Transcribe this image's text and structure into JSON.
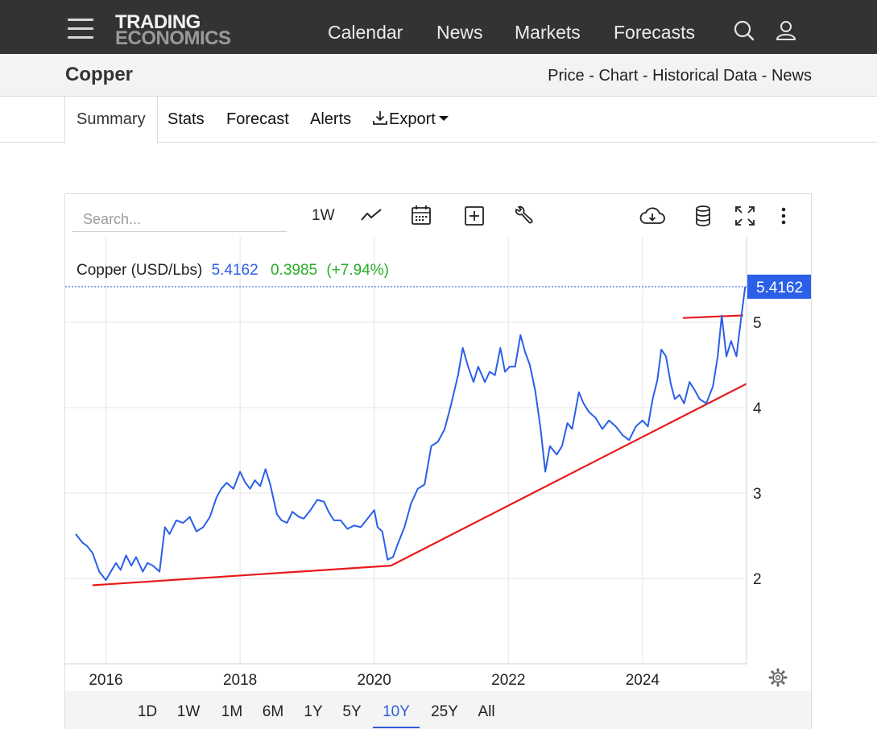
{
  "header": {
    "logo_line1": "TRADING",
    "logo_line2": "ECONOMICS",
    "nav": [
      "Calendar",
      "News",
      "Markets",
      "Forecasts"
    ]
  },
  "page": {
    "title": "Copper",
    "breadcrumb": [
      "Price",
      "Chart",
      "Historical Data",
      "News"
    ],
    "breadcrumb_sep": " - "
  },
  "tabs": {
    "items": [
      "Summary",
      "Stats",
      "Forecast",
      "Alerts"
    ],
    "export_label": "Export",
    "active": "Summary"
  },
  "toolbar": {
    "search_placeholder": "Search...",
    "interval_label": "1W"
  },
  "ranges": {
    "items": [
      "1D",
      "1W",
      "1M",
      "6M",
      "1Y",
      "5Y",
      "10Y",
      "25Y",
      "All"
    ],
    "active": "10Y"
  },
  "colors": {
    "line": "#2b5fe8",
    "trend": "#e8191b",
    "change_positive": "#27ad27",
    "last_price_bg": "#2b5fe8",
    "header_bg": "#333333"
  },
  "chart_data": {
    "type": "line",
    "legend": {
      "name": "Copper (USD/Lbs)",
      "last": "5.4162",
      "change": "0.3985",
      "change_pct": "(+7.94%)"
    },
    "last_price_label": "5.4162",
    "x_ticks": [
      "2016",
      "2018",
      "2020",
      "2022",
      "2024"
    ],
    "y_ticks": [
      "2",
      "3",
      "4",
      "5"
    ],
    "xlim": [
      2015.55,
      2025.55
    ],
    "ylim": [
      1.0,
      6.0
    ],
    "grid": true,
    "series": [
      {
        "values_xy": [
          [
            2015.55,
            2.52
          ],
          [
            2015.65,
            2.42
          ],
          [
            2015.72,
            2.38
          ],
          [
            2015.8,
            2.3
          ],
          [
            2015.9,
            2.08
          ],
          [
            2016.0,
            1.98
          ],
          [
            2016.05,
            2.05
          ],
          [
            2016.15,
            2.18
          ],
          [
            2016.22,
            2.1
          ],
          [
            2016.3,
            2.27
          ],
          [
            2016.38,
            2.15
          ],
          [
            2016.45,
            2.25
          ],
          [
            2016.55,
            2.08
          ],
          [
            2016.62,
            2.18
          ],
          [
            2016.7,
            2.15
          ],
          [
            2016.8,
            2.08
          ],
          [
            2016.88,
            2.6
          ],
          [
            2016.95,
            2.52
          ],
          [
            2017.05,
            2.68
          ],
          [
            2017.15,
            2.65
          ],
          [
            2017.25,
            2.72
          ],
          [
            2017.35,
            2.55
          ],
          [
            2017.45,
            2.6
          ],
          [
            2017.55,
            2.72
          ],
          [
            2017.65,
            2.95
          ],
          [
            2017.72,
            3.05
          ],
          [
            2017.8,
            3.12
          ],
          [
            2017.9,
            3.05
          ],
          [
            2018.0,
            3.25
          ],
          [
            2018.08,
            3.12
          ],
          [
            2018.15,
            3.05
          ],
          [
            2018.22,
            3.15
          ],
          [
            2018.3,
            3.08
          ],
          [
            2018.38,
            3.28
          ],
          [
            2018.45,
            3.1
          ],
          [
            2018.55,
            2.75
          ],
          [
            2018.62,
            2.68
          ],
          [
            2018.7,
            2.65
          ],
          [
            2018.78,
            2.78
          ],
          [
            2018.88,
            2.72
          ],
          [
            2018.95,
            2.7
          ],
          [
            2019.05,
            2.8
          ],
          [
            2019.15,
            2.92
          ],
          [
            2019.25,
            2.9
          ],
          [
            2019.32,
            2.78
          ],
          [
            2019.4,
            2.68
          ],
          [
            2019.5,
            2.68
          ],
          [
            2019.6,
            2.58
          ],
          [
            2019.7,
            2.62
          ],
          [
            2019.8,
            2.6
          ],
          [
            2019.9,
            2.7
          ],
          [
            2020.0,
            2.8
          ],
          [
            2020.05,
            2.6
          ],
          [
            2020.12,
            2.55
          ],
          [
            2020.2,
            2.22
          ],
          [
            2020.28,
            2.25
          ],
          [
            2020.35,
            2.4
          ],
          [
            2020.45,
            2.6
          ],
          [
            2020.55,
            2.88
          ],
          [
            2020.65,
            3.05
          ],
          [
            2020.75,
            3.1
          ],
          [
            2020.85,
            3.55
          ],
          [
            2020.95,
            3.6
          ],
          [
            2021.05,
            3.75
          ],
          [
            2021.15,
            4.05
          ],
          [
            2021.25,
            4.38
          ],
          [
            2021.32,
            4.7
          ],
          [
            2021.4,
            4.48
          ],
          [
            2021.48,
            4.3
          ],
          [
            2021.55,
            4.48
          ],
          [
            2021.65,
            4.3
          ],
          [
            2021.72,
            4.42
          ],
          [
            2021.8,
            4.38
          ],
          [
            2021.88,
            4.7
          ],
          [
            2021.95,
            4.42
          ],
          [
            2022.02,
            4.48
          ],
          [
            2022.1,
            4.48
          ],
          [
            2022.18,
            4.85
          ],
          [
            2022.25,
            4.65
          ],
          [
            2022.32,
            4.5
          ],
          [
            2022.4,
            4.2
          ],
          [
            2022.48,
            3.75
          ],
          [
            2022.55,
            3.25
          ],
          [
            2022.62,
            3.55
          ],
          [
            2022.72,
            3.45
          ],
          [
            2022.8,
            3.55
          ],
          [
            2022.88,
            3.82
          ],
          [
            2022.95,
            3.75
          ],
          [
            2023.05,
            4.18
          ],
          [
            2023.12,
            4.05
          ],
          [
            2023.2,
            3.95
          ],
          [
            2023.3,
            3.88
          ],
          [
            2023.4,
            3.75
          ],
          [
            2023.5,
            3.85
          ],
          [
            2023.6,
            3.78
          ],
          [
            2023.7,
            3.68
          ],
          [
            2023.8,
            3.62
          ],
          [
            2023.9,
            3.78
          ],
          [
            2024.0,
            3.85
          ],
          [
            2024.08,
            3.78
          ],
          [
            2024.15,
            4.1
          ],
          [
            2024.22,
            4.32
          ],
          [
            2024.28,
            4.68
          ],
          [
            2024.35,
            4.6
          ],
          [
            2024.42,
            4.28
          ],
          [
            2024.48,
            4.1
          ],
          [
            2024.55,
            4.15
          ],
          [
            2024.62,
            4.05
          ],
          [
            2024.7,
            4.3
          ],
          [
            2024.78,
            4.2
          ],
          [
            2024.85,
            4.1
          ],
          [
            2024.95,
            4.05
          ],
          [
            2025.05,
            4.25
          ],
          [
            2025.12,
            4.6
          ],
          [
            2025.18,
            5.08
          ],
          [
            2025.25,
            4.6
          ],
          [
            2025.32,
            4.78
          ],
          [
            2025.4,
            4.6
          ],
          [
            2025.47,
            5.05
          ],
          [
            2025.53,
            5.4162
          ]
        ]
      }
    ]
  }
}
